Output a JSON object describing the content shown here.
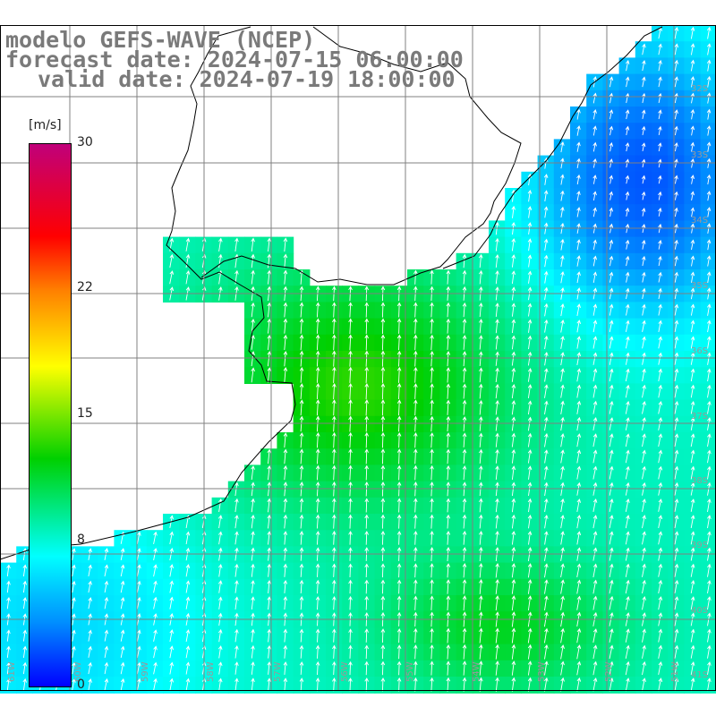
{
  "title": {
    "model": "modelo GEFS-WAVE (NCEP)",
    "forecast": "forecast date: 2024-07-15 06:00:00",
    "valid": "valid date: 2024-07-19 18:00:00"
  },
  "colorbar": {
    "unit": "[m/s]",
    "ticks": [
      {
        "label": "30",
        "value": 30
      },
      {
        "label": "22",
        "value": 22
      },
      {
        "label": "15",
        "value": 15
      },
      {
        "label": "8",
        "value": 8
      },
      {
        "label": "0",
        "value": 0
      }
    ],
    "colors": [
      "#0000ff",
      "#0090ff",
      "#00ffff",
      "#00d000",
      "#ffff00",
      "#ff8000",
      "#ff0000",
      "#c0007a"
    ]
  },
  "grid_labels": {
    "lat": [
      "32S",
      "33S",
      "34S",
      "35S",
      "36S",
      "37S",
      "38S",
      "39S",
      "40S",
      "41S"
    ],
    "lon": [
      "61W",
      "60W",
      "59W",
      "58W",
      "57W",
      "56W",
      "55W",
      "54W",
      "53W",
      "52W",
      "51W"
    ]
  },
  "colors": {
    "land": "#ffffff",
    "coast": "#000000",
    "grid": "#808080",
    "arrows": "#ffffff"
  }
}
